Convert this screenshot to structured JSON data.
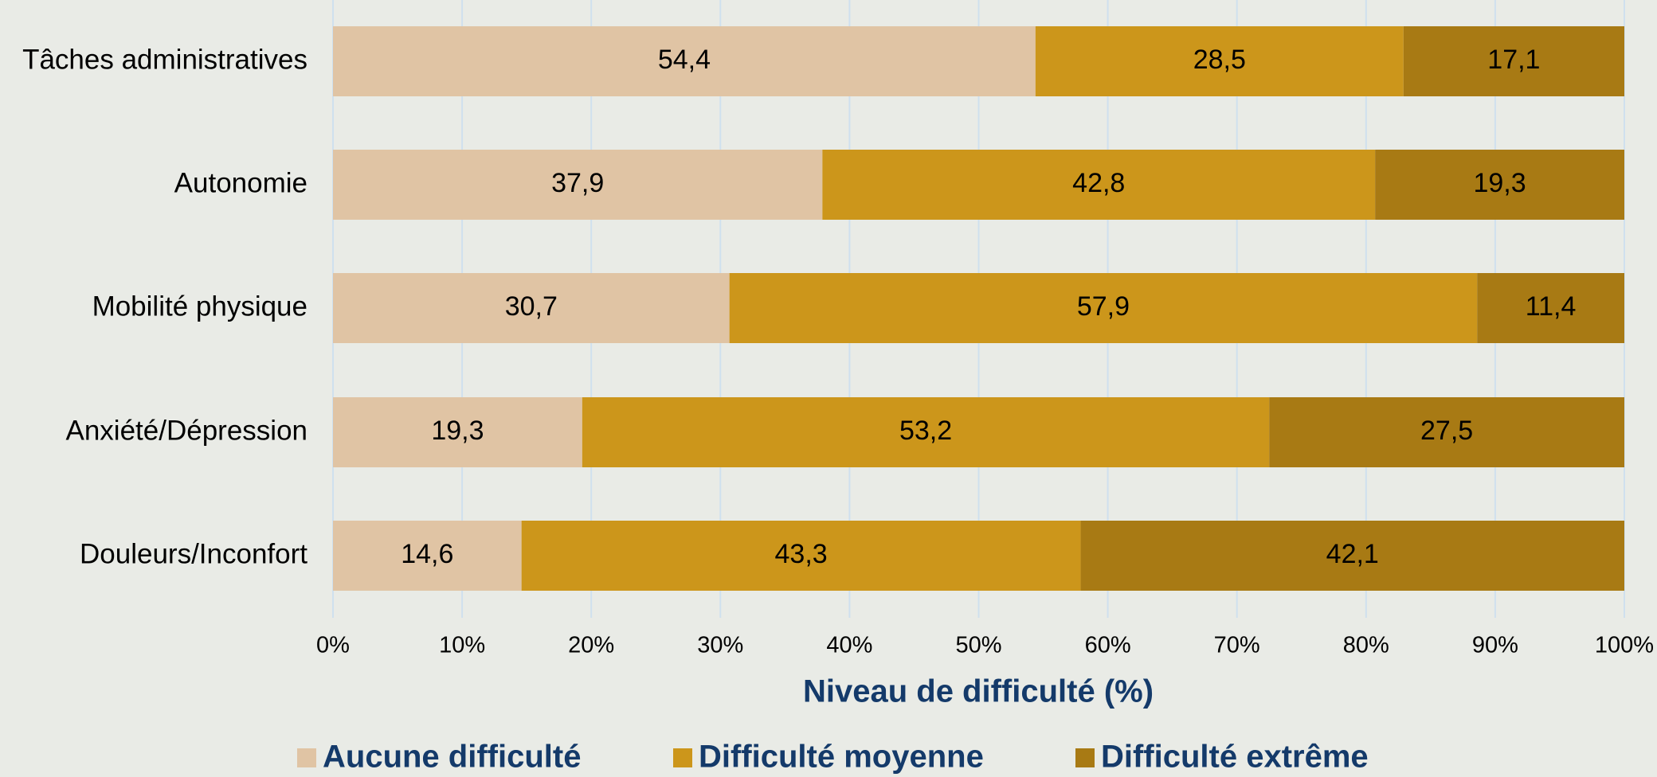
{
  "chart_data": {
    "type": "stacked_bar_horizontal",
    "x_label": "Niveau de difficulté (%)",
    "categories": [
      "Tâches administratives",
      "Autonomie",
      "Mobilité physique",
      "Anxiété/Dépression",
      "Douleurs/Inconfort"
    ],
    "series": [
      {
        "name": "Aucune difficulté",
        "color": "#e0c4a4",
        "values": [
          54.4,
          37.9,
          30.7,
          19.3,
          14.6
        ],
        "value_labels": [
          "54,4",
          "37,9",
          "30,7",
          "19,3",
          "14,6"
        ]
      },
      {
        "name": "Difficulté moyenne",
        "color": "#cc961b",
        "values": [
          28.5,
          42.8,
          57.9,
          53.2,
          43.3
        ],
        "value_labels": [
          "28,5",
          "42,8",
          "57,9",
          "53,2",
          "43,3"
        ]
      },
      {
        "name": "Difficulté extrême",
        "color": "#a87a14",
        "values": [
          17.1,
          19.3,
          11.4,
          27.5,
          42.1
        ],
        "value_labels": [
          "17,1",
          "19,3",
          "11,4",
          "27,5",
          "42,1"
        ]
      }
    ],
    "xlim": [
      0,
      100
    ],
    "xticks": [
      {
        "value": 0,
        "label": "0%"
      },
      {
        "value": 10,
        "label": "10%"
      },
      {
        "value": 20,
        "label": "20%"
      },
      {
        "value": 30,
        "label": "30%"
      },
      {
        "value": 40,
        "label": "40%"
      },
      {
        "value": 50,
        "label": "50%"
      },
      {
        "value": 60,
        "label": "60%"
      },
      {
        "value": 70,
        "label": "70%"
      },
      {
        "value": 80,
        "label": "80%"
      },
      {
        "value": 90,
        "label": "90%"
      },
      {
        "value": 100,
        "label": "100%"
      }
    ],
    "grid": true,
    "legend": "bottom"
  }
}
